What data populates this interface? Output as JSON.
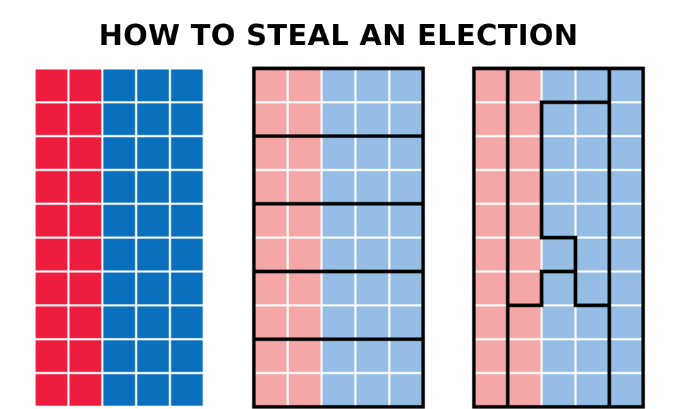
{
  "title": "HOW TO STEAL AN ELECTION",
  "grid": {
    "rows": 10,
    "cols": 5
  },
  "colors": {
    "red": "#ee1c3e",
    "blue": "#0a6fbd",
    "light_red": "#f5a7a7",
    "light_blue": "#96bde6",
    "border": "#000000",
    "gap": "#ffffff"
  },
  "panels": [
    {
      "id": "voters",
      "columns": [
        "red",
        "red",
        "blue",
        "blue",
        "blue"
      ],
      "faded": false,
      "districts": []
    },
    {
      "id": "compact-districts",
      "columns": [
        "red",
        "red",
        "blue",
        "blue",
        "blue"
      ],
      "faded": true,
      "districts": [
        {
          "cells": [
            [
              0,
              0
            ],
            [
              1,
              0
            ],
            [
              2,
              0
            ],
            [
              3,
              0
            ],
            [
              4,
              0
            ],
            [
              0,
              1
            ],
            [
              1,
              1
            ],
            [
              2,
              1
            ],
            [
              3,
              1
            ],
            [
              4,
              1
            ]
          ]
        },
        {
          "cells": [
            [
              0,
              2
            ],
            [
              1,
              2
            ],
            [
              2,
              2
            ],
            [
              3,
              2
            ],
            [
              4,
              2
            ],
            [
              0,
              3
            ],
            [
              1,
              3
            ],
            [
              2,
              3
            ],
            [
              3,
              3
            ],
            [
              4,
              3
            ]
          ]
        },
        {
          "cells": [
            [
              0,
              4
            ],
            [
              1,
              4
            ],
            [
              2,
              4
            ],
            [
              3,
              4
            ],
            [
              4,
              4
            ],
            [
              0,
              5
            ],
            [
              1,
              5
            ],
            [
              2,
              5
            ],
            [
              3,
              5
            ],
            [
              4,
              5
            ]
          ]
        },
        {
          "cells": [
            [
              0,
              6
            ],
            [
              1,
              6
            ],
            [
              2,
              6
            ],
            [
              3,
              6
            ],
            [
              4,
              6
            ],
            [
              0,
              7
            ],
            [
              1,
              7
            ],
            [
              2,
              7
            ],
            [
              3,
              7
            ],
            [
              4,
              7
            ]
          ]
        },
        {
          "cells": [
            [
              0,
              8
            ],
            [
              1,
              8
            ],
            [
              2,
              8
            ],
            [
              3,
              8
            ],
            [
              4,
              8
            ],
            [
              0,
              9
            ],
            [
              1,
              9
            ],
            [
              2,
              9
            ],
            [
              3,
              9
            ],
            [
              4,
              9
            ]
          ]
        }
      ]
    },
    {
      "id": "gerrymandered-districts",
      "columns": [
        "red",
        "red",
        "blue",
        "blue",
        "blue"
      ],
      "faded": true,
      "districts": [
        {
          "cells": [
            [
              0,
              0
            ],
            [
              0,
              1
            ],
            [
              0,
              2
            ],
            [
              0,
              3
            ],
            [
              0,
              4
            ],
            [
              0,
              5
            ],
            [
              0,
              6
            ],
            [
              0,
              7
            ],
            [
              0,
              8
            ],
            [
              0,
              9
            ]
          ]
        },
        {
          "cells": [
            [
              1,
              0
            ],
            [
              2,
              0
            ],
            [
              3,
              0
            ],
            [
              1,
              1
            ],
            [
              1,
              2
            ],
            [
              1,
              3
            ],
            [
              1,
              4
            ],
            [
              1,
              5
            ],
            [
              1,
              6
            ],
            [
              2,
              5
            ]
          ]
        },
        {
          "cells": [
            [
              4,
              0
            ],
            [
              4,
              1
            ],
            [
              4,
              2
            ],
            [
              4,
              3
            ],
            [
              4,
              4
            ],
            [
              4,
              5
            ],
            [
              4,
              6
            ],
            [
              4,
              7
            ],
            [
              4,
              8
            ],
            [
              4,
              9
            ]
          ]
        },
        {
          "cells": [
            [
              2,
              1
            ],
            [
              3,
              1
            ],
            [
              2,
              2
            ],
            [
              3,
              2
            ],
            [
              2,
              3
            ],
            [
              3,
              3
            ],
            [
              2,
              4
            ],
            [
              3,
              4
            ],
            [
              3,
              5
            ],
            [
              3,
              6
            ]
          ]
        },
        {
          "cells": [
            [
              1,
              7
            ],
            [
              2,
              6
            ],
            [
              2,
              7
            ],
            [
              3,
              7
            ],
            [
              2,
              8
            ],
            [
              3,
              8
            ],
            [
              1,
              8
            ],
            [
              1,
              9
            ],
            [
              2,
              9
            ],
            [
              3,
              9
            ]
          ]
        }
      ]
    }
  ]
}
